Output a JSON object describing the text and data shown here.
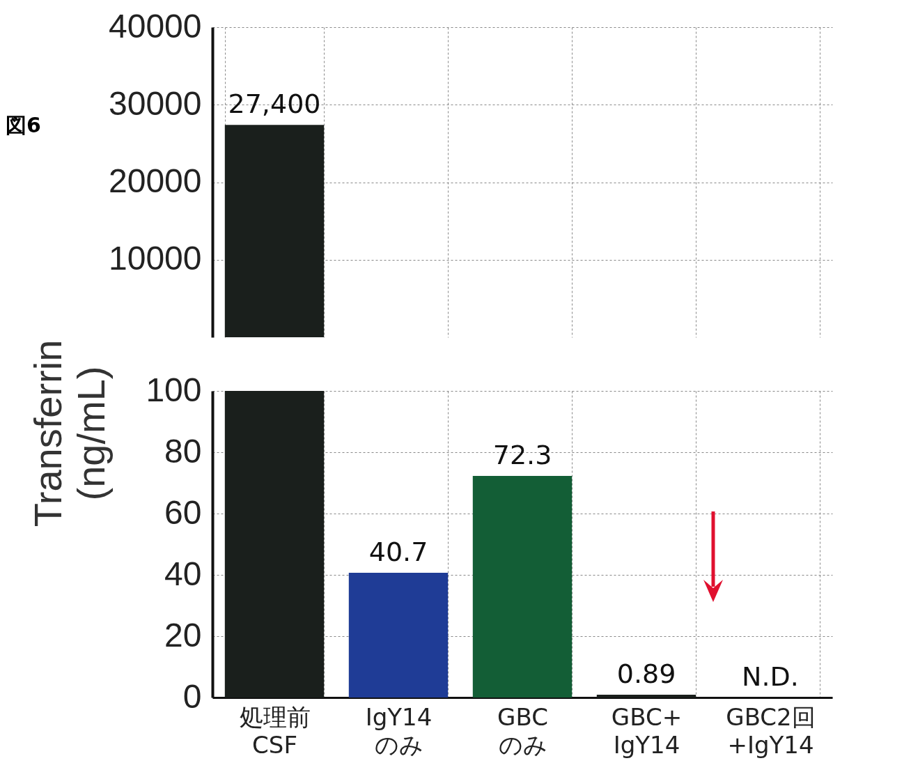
{
  "chart_data": [
    {
      "type": "bar",
      "categories": [
        null,
        null,
        null,
        null,
        null
      ],
      "ylabel": "Transferrin (ng/mL)",
      "annotations": [
        "図6"
      ],
      "series": [
        {
          "colors": [
            "#1a1f1c",
            "#1f3c96",
            "#135e36",
            "#1a1f1c",
            "#1a1f1c"
          ],
          "values": [
            27400,
            null,
            null,
            null,
            null
          ],
          "value_labels": [
            "27,400",
            null,
            null,
            null,
            null
          ]
        }
      ],
      "ylim": [
        0,
        40000
      ],
      "yticks": [
        10000,
        20000,
        30000,
        40000
      ],
      "grid": true,
      "tick_labels": "y"
    },
    {
      "type": "bar",
      "categories": [
        "処理前\nCSF",
        "IgY14\nのみ",
        "GBC\nのみ",
        "GBC+\nIgY14",
        "GBC2回\n+IgY14"
      ],
      "series": [
        {
          "colors": [
            "#1a1f1c",
            "#1f3c96",
            "#135e36",
            "#1a1f1c",
            "#1a1f1c"
          ],
          "values": [
            null,
            40.7,
            72.3,
            0.89,
            null
          ],
          "value_labels": [
            null,
            "40.7",
            "72.3",
            "0.89",
            "N.D."
          ]
        }
      ],
      "ylim": [
        0,
        100
      ],
      "yticks": [
        0,
        20,
        40,
        60,
        80,
        100
      ],
      "grid": true
    }
  ]
}
